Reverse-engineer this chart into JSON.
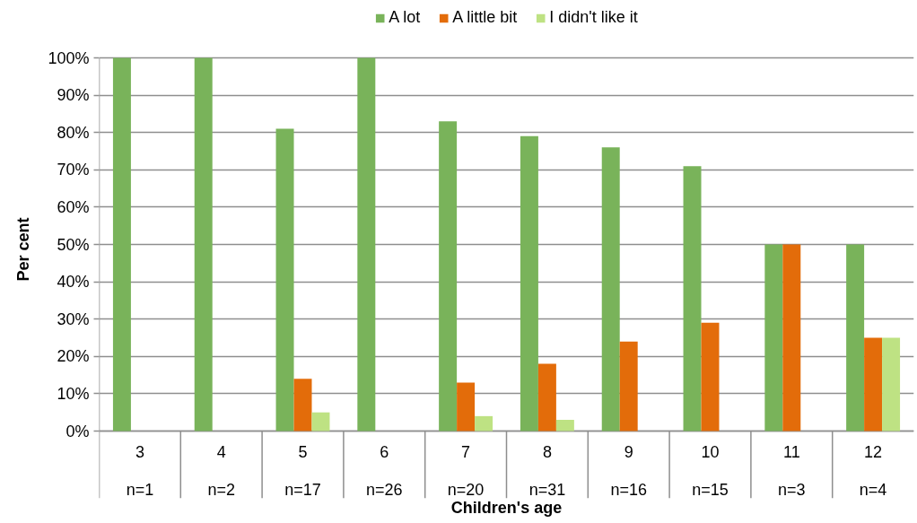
{
  "chart_data": {
    "type": "bar",
    "xlabel": "Children's age",
    "ylabel": "Per cent",
    "categories": [
      "3\nn=1",
      "4\nn=2",
      "5\nn=17",
      "6\nn=26",
      "7\nn=20",
      "8\nn=31",
      "9\nn=16",
      "10\nn=15",
      "11\nn=3",
      "12\nn=4"
    ],
    "series": [
      {
        "name": "A lot",
        "color": "#79b35a",
        "values": [
          100,
          100,
          81,
          100,
          83,
          79,
          76,
          71,
          50,
          50
        ]
      },
      {
        "name": "A little bit",
        "color": "#e36c0a",
        "values": [
          0,
          0,
          14,
          0,
          13,
          18,
          24,
          29,
          50,
          25
        ]
      },
      {
        "name": "I didn't like it",
        "color": "#bee283",
        "values": [
          0,
          0,
          5,
          0,
          4,
          3,
          0,
          0,
          0,
          25
        ]
      }
    ],
    "ylim": [
      0,
      100
    ],
    "yticks": [
      {
        "value": 0,
        "label": "0%"
      },
      {
        "value": 10,
        "label": "10%"
      },
      {
        "value": 20,
        "label": "20%"
      },
      {
        "value": 30,
        "label": "30%"
      },
      {
        "value": 40,
        "label": "40%"
      },
      {
        "value": 50,
        "label": "50%"
      },
      {
        "value": 60,
        "label": "60%"
      },
      {
        "value": 70,
        "label": "70%"
      },
      {
        "value": 80,
        "label": "80%"
      },
      {
        "value": 90,
        "label": "90%"
      },
      {
        "value": 100,
        "label": "100%"
      }
    ],
    "grid": "y",
    "legend": "top"
  }
}
